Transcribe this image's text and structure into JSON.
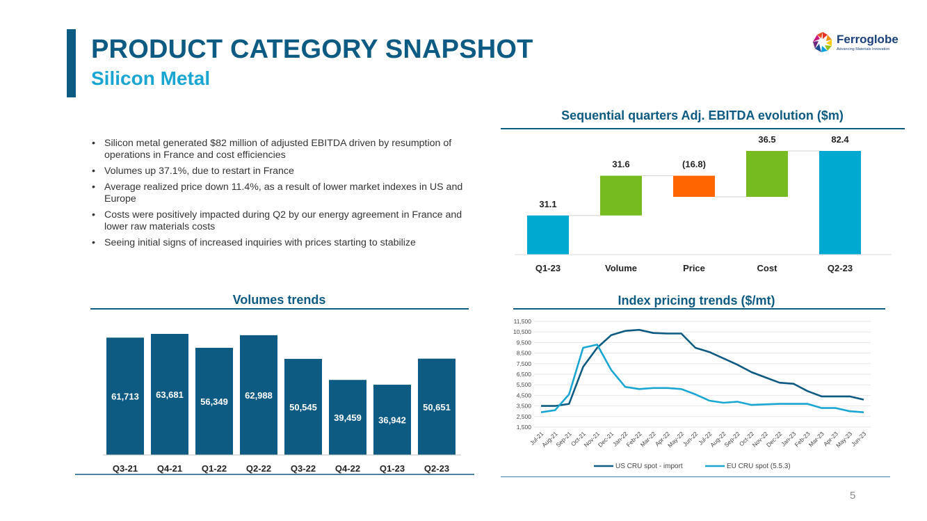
{
  "header": {
    "title": "PRODUCT CATEGORY SNAPSHOT",
    "subtitle": "Silicon Metal"
  },
  "logo": {
    "name": "Ferroglobe",
    "tagline": "Advancing Materials Innovation"
  },
  "bullets": [
    "Silicon metal generated $82 million of adjusted EBITDA driven by resumption of operations in France and cost efficiencies",
    "Volumes up 37.1%, due to restart in France",
    "Average realized price down 11.4%, as a result of lower market indexes in US and Europe",
    "Costs were positively impacted during Q2 by our energy agreement in France and lower raw materials costs",
    "Seeing initial signs of increased inquiries with prices starting to stabilize"
  ],
  "page_number": "5",
  "colors": {
    "brand_dark": "#0d5a82",
    "brand_light": "#1aa6d3",
    "positive": "#76bc21",
    "negative": "#ff6600",
    "total": "#00a9cf",
    "us_line": "#0d5a82",
    "eu_line": "#1aa6d3"
  },
  "chart_data": [
    {
      "id": "waterfall",
      "type": "bar",
      "title": "Sequential quarters Adj. EBITDA evolution ($m)",
      "categories": [
        "Q1-23",
        "Volume",
        "Price",
        "Cost",
        "Q2-23"
      ],
      "values": [
        31.1,
        31.6,
        -16.8,
        36.5,
        82.4
      ],
      "labels": [
        "31.1",
        "31.6",
        "(16.8)",
        "36.5",
        "82.4"
      ],
      "kinds": [
        "total",
        "increase",
        "decrease",
        "increase",
        "total"
      ]
    },
    {
      "id": "volumes",
      "type": "bar",
      "title": "Volumes trends",
      "categories": [
        "Q3-21",
        "Q4-21",
        "Q1-22",
        "Q2-22",
        "Q3-22",
        "Q4-22",
        "Q1-23",
        "Q2-23"
      ],
      "values": [
        61713,
        63681,
        56349,
        62988,
        50545,
        39459,
        36942,
        50651
      ],
      "labels": [
        "61,713",
        "63,681",
        "56,349",
        "62,988",
        "50,545",
        "39,459",
        "36,942",
        "50,651"
      ]
    },
    {
      "id": "pricing",
      "type": "line",
      "title": "Index pricing trends ($/mt)",
      "x": [
        "Jul-21",
        "Aug-21",
        "Sep-21",
        "Oct-21",
        "Nov-21",
        "Dec-21",
        "Jan-22",
        "Feb-22",
        "Mar-22",
        "Apr-22",
        "May-22",
        "Jun-22",
        "Jul-22",
        "Aug-22",
        "Sep-22",
        "Oct-22",
        "Nov-22",
        "Dec-22",
        "Jan-23",
        "Feb-23",
        "Mar-23",
        "Apr-23",
        "May-23",
        "Jun-23"
      ],
      "ylim": [
        1500,
        11500
      ],
      "yticks": [
        "1,500",
        "2,500",
        "3,500",
        "4,500",
        "5,500",
        "6,500",
        "7,500",
        "8,500",
        "9,500",
        "10,500",
        "11,500"
      ],
      "grid": true,
      "legend": "bottom",
      "series": [
        {
          "name": "US CRU spot - import",
          "values": [
            3500,
            3500,
            3700,
            7200,
            9000,
            10200,
            10600,
            10700,
            10400,
            10350,
            10350,
            9000,
            8600,
            8000,
            7400,
            6700,
            6200,
            5700,
            5600,
            4900,
            4400,
            4400,
            4400,
            4100
          ]
        },
        {
          "name": "EU CRU spot (5.5.3)",
          "values": [
            2900,
            3100,
            4600,
            9000,
            9300,
            6900,
            5300,
            5100,
            5200,
            5200,
            5100,
            4600,
            4000,
            3800,
            3900,
            3600,
            3650,
            3700,
            3700,
            3700,
            3300,
            3300,
            3000,
            2900
          ]
        }
      ]
    }
  ]
}
